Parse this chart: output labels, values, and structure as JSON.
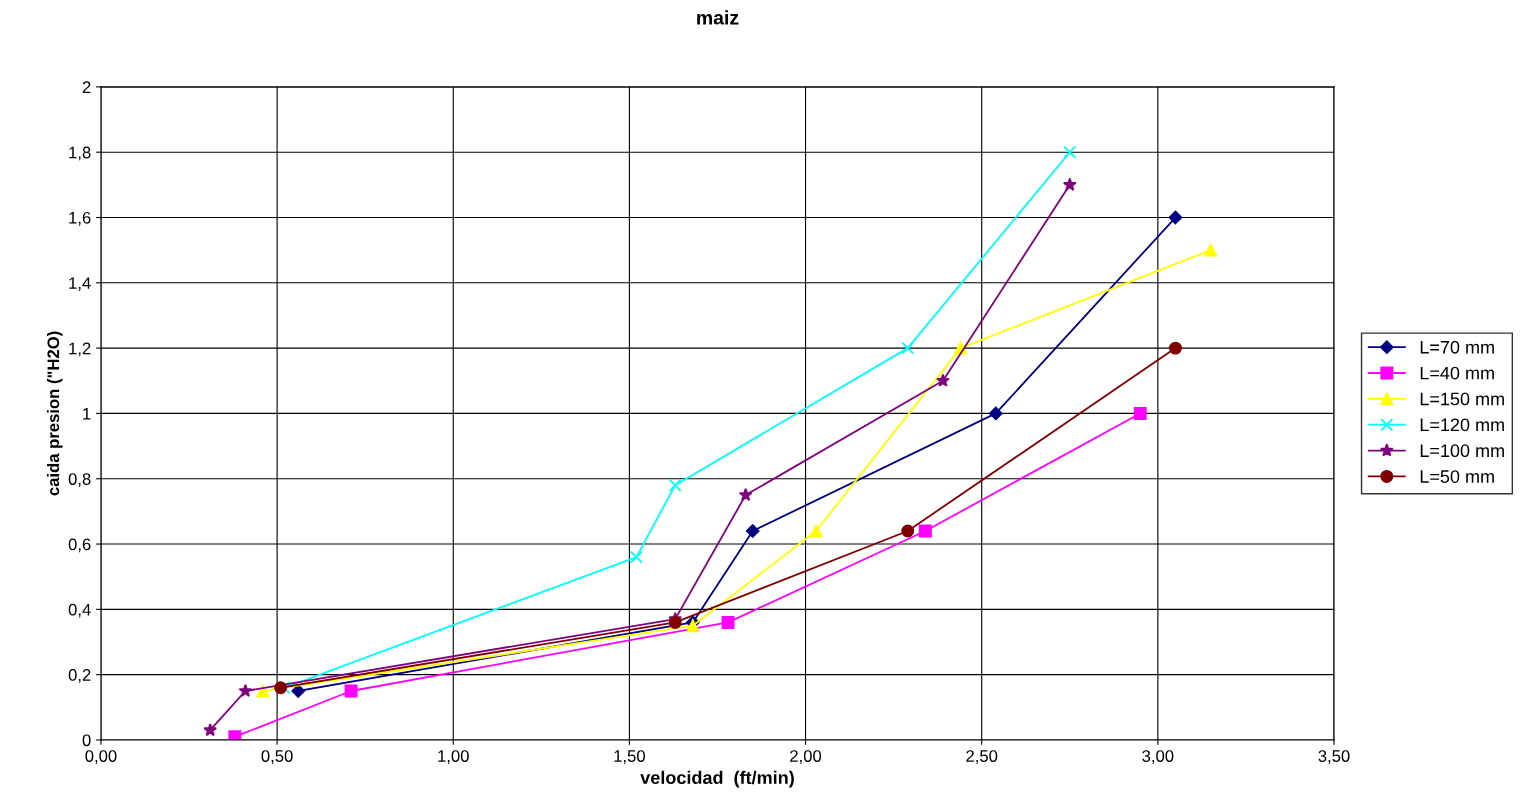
{
  "chart_data": {
    "type": "line",
    "title": "maiz",
    "xlabel": "velocidad  (ft/min)",
    "ylabel": "caida presion (\"H2O)",
    "xlim": [
      0,
      3.5
    ],
    "ylim": [
      0,
      2
    ],
    "xticks": [
      {
        "value": 0,
        "label": "0,00"
      },
      {
        "value": 0.5,
        "label": "0,50"
      },
      {
        "value": 1,
        "label": "1,00"
      },
      {
        "value": 1.5,
        "label": "1,50"
      },
      {
        "value": 2,
        "label": "2,00"
      },
      {
        "value": 2.5,
        "label": "2,50"
      },
      {
        "value": 3,
        "label": "3,00"
      },
      {
        "value": 3.5,
        "label": "3,50"
      }
    ],
    "yticks": [
      0,
      {
        "value": 0.2,
        "label": "0,2"
      },
      {
        "value": 0.4,
        "label": "0,4"
      },
      {
        "value": 0.6,
        "label": "0,6"
      },
      {
        "value": 0.8,
        "label": "0,8"
      },
      1,
      {
        "value": 1.2,
        "label": "1,2"
      },
      {
        "value": 1.4,
        "label": "1,4"
      },
      {
        "value": 1.6,
        "label": "1,6"
      },
      {
        "value": 1.8,
        "label": "1,8"
      },
      2
    ],
    "grid": true,
    "legend": "right",
    "series": [
      {
        "name": "L=70 mm",
        "color": "#000080",
        "marker": "diamond",
        "x": [
          0.56,
          1.68,
          1.85,
          2.54,
          3.05
        ],
        "values": [
          0.15,
          0.36,
          0.64,
          1.0,
          1.6
        ]
      },
      {
        "name": "L=40 mm",
        "color": "#ff00ff",
        "marker": "square",
        "x": [
          0.38,
          0.71,
          1.78,
          2.34,
          2.95
        ],
        "values": [
          0.01,
          0.15,
          0.36,
          0.64,
          1.0
        ]
      },
      {
        "name": "L=150 mm",
        "color": "#ffff00",
        "marker": "triangle",
        "x": [
          0.46,
          1.68,
          2.03,
          2.44,
          3.15
        ],
        "values": [
          0.15,
          0.35,
          0.64,
          1.2,
          1.5
        ]
      },
      {
        "name": "L=120 mm",
        "color": "#00ffff",
        "marker": "cross",
        "x": [
          0.52,
          1.52,
          1.63,
          2.29,
          2.75
        ],
        "values": [
          0.16,
          0.56,
          0.78,
          1.2,
          1.8
        ]
      },
      {
        "name": "L=100 mm",
        "color": "#800080",
        "marker": "star",
        "x": [
          0.31,
          0.41,
          1.63,
          1.83,
          2.39,
          2.75
        ],
        "values": [
          0.03,
          0.15,
          0.37,
          0.75,
          1.1,
          1.7
        ]
      },
      {
        "name": "L=50 mm",
        "color": "#800000",
        "marker": "circle",
        "x": [
          0.51,
          1.63,
          2.29,
          3.05
        ],
        "values": [
          0.16,
          0.36,
          0.64,
          1.2
        ]
      }
    ]
  }
}
